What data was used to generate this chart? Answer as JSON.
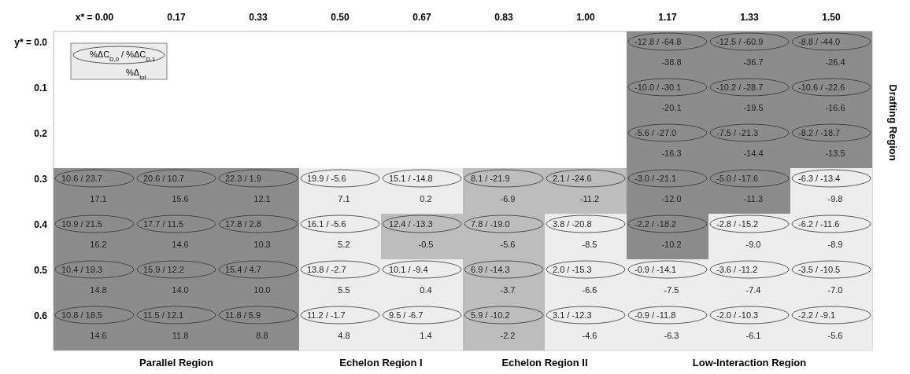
{
  "chart_data": {
    "type": "heatmap",
    "categories": [
      "x* = 0.00",
      "0.17",
      "0.33",
      "0.50",
      "0.67",
      "0.83",
      "1.00",
      "1.17",
      "1.33",
      "1.50"
    ],
    "y_categories": [
      "y* = 0.0",
      "0.1",
      "0.2",
      "0.3",
      "0.4",
      "0.5",
      "0.6"
    ],
    "cells": [
      [
        null,
        null,
        null,
        null,
        null,
        null,
        null,
        -38.8,
        -36.7,
        -26.4
      ],
      [
        null,
        null,
        null,
        null,
        null,
        null,
        null,
        -20.1,
        -19.5,
        -16.6
      ],
      [
        null,
        null,
        null,
        null,
        null,
        null,
        null,
        -16.3,
        -14.4,
        -13.5
      ],
      [
        17.1,
        15.6,
        12.1,
        7.1,
        0.2,
        -6.9,
        -11.2,
        -12.0,
        -11.3,
        -9.8
      ],
      [
        16.2,
        14.6,
        10.3,
        5.2,
        -0.5,
        -5.6,
        -8.5,
        -10.2,
        -9.0,
        -8.9
      ],
      [
        14.8,
        14.0,
        10.0,
        5.5,
        0.4,
        -3.7,
        -6.6,
        -7.5,
        -7.4,
        -7.0
      ],
      [
        14.6,
        11.8,
        8.8,
        4.8,
        1.4,
        -2.2,
        -4.6,
        -6.3,
        -6.1,
        -5.6
      ]
    ],
    "data_labels": true,
    "cell_labels": [
      [
        null,
        null,
        null,
        null,
        null,
        null,
        null,
        "-38.8",
        "-36.7",
        "-26.4"
      ],
      [
        null,
        null,
        null,
        null,
        null,
        null,
        null,
        "-20.1",
        "-19.5",
        "-16.6"
      ],
      [
        null,
        null,
        null,
        null,
        null,
        null,
        null,
        "-16.3",
        "-14.4",
        "-13.5"
      ],
      [
        "17.1",
        "15.6",
        "12.1",
        "7.1",
        "0.2",
        "-6.9",
        "-11.2",
        "-12.0",
        "-11.3",
        "-9.8"
      ],
      [
        "16.2",
        "14.6",
        "10.3",
        "5.2",
        "-0.5",
        "-5.6",
        "-8.5",
        "-10.2",
        "-9.0",
        "-8.9"
      ],
      [
        "14.8",
        "14.0",
        "10.0",
        "5.5",
        "0.4",
        "-3.7",
        "-6.6",
        "-7.5",
        "-7.4",
        "-7.0"
      ],
      [
        "14.6",
        "11.8",
        "8.8",
        "4.8",
        "1.4",
        "-2.2",
        "-4.6",
        "-6.3",
        "-6.1",
        "-5.6"
      ]
    ],
    "colors": [
      [
        null,
        null,
        null,
        null,
        null,
        null,
        null,
        "#8c8c8c",
        "#8c8c8c",
        "#8c8c8c"
      ],
      [
        null,
        null,
        null,
        null,
        null,
        null,
        null,
        "#8c8c8c",
        "#8c8c8c",
        "#8c8c8c"
      ],
      [
        null,
        null,
        null,
        null,
        null,
        null,
        null,
        "#8c8c8c",
        "#8c8c8c",
        "#8c8c8c"
      ],
      [
        "#8c8c8c",
        "#8c8c8c",
        "#8c8c8c",
        "#ededed",
        "#ededed",
        "#bdbdbd",
        "#bdbdbd",
        "#8c8c8c",
        "#8c8c8c",
        "#ededed"
      ],
      [
        "#8c8c8c",
        "#8c8c8c",
        "#8c8c8c",
        "#ededed",
        "#bdbdbd",
        "#bdbdbd",
        "#ededed",
        "#8c8c8c",
        "#ededed",
        "#ededed"
      ],
      [
        "#8c8c8c",
        "#8c8c8c",
        "#8c8c8c",
        "#ededed",
        "#ededed",
        "#bdbdbd",
        "#ededed",
        "#ededed",
        "#ededed",
        "#ededed"
      ],
      [
        "#8c8c8c",
        "#8c8c8c",
        "#8c8c8c",
        "#ededed",
        "#ededed",
        "#bdbdbd",
        "#ededed",
        "#ededed",
        "#ededed",
        "#ededed"
      ]
    ],
    "annotations": [
      "Parallel Region",
      "Echelon Region I",
      "Echelon Region II",
      "Low-Interaction Region",
      "Drafting Region",
      "%ΔC$_{D,0}$ / %ΔC$_{D,1}$",
      "%Δ$_{tot}$",
      "-12.8 / -64.8",
      "-12.5 / -60.9",
      "-8.8 / -44.0",
      "-10.0 / -30.1",
      "-10.2 / -28.7",
      "-10.6 / -22.6",
      "-5.6 / -27.0",
      "-7.5 / -21.3",
      "-8.2 / -18.7",
      "10.6 / 23.7",
      "20.6 / 10.7",
      "22.3 / 1.9",
      "19.9 / -5.6",
      "15.1 / -14.8",
      "8.1 / -21.9",
      "2.1 / -24.6",
      "-3.0 / -21.1",
      "-5.0 / -17.6",
      "-6.3 / -13.4",
      "10.9 / 21.5",
      "17.7 / 11.5",
      "17.8 / 2.8",
      "16.1 / -5.6",
      "12.4 / -13.3",
      "7.8 / -19.0",
      "3.8 / -20.8",
      "-2.2 / -18.2",
      "-2.8 / -15.2",
      "-6.2 / -11.6",
      "10.4 / 19.3",
      "15.9 / 12.2",
      "15.4 / 4.7",
      "13.8 / -2.7",
      "10.1 / -9.4",
      "6.9 / -14.3",
      "2.0 / -15.3",
      "-0.9 / -14.1",
      "-3.6 / -11.2",
      "-3.5 / -10.5",
      "10.8 / 18.5",
      "11.5 / 12.1",
      "11.8 / 5.9",
      "11.2 / -1.7",
      "9.5 / -6.7",
      "5.9 / -10.2",
      "3.1 / -12.3",
      "-0.9 / -11.8",
      "-2.0 / -10.3",
      "-2.2 / -9.1"
    ]
  }
}
